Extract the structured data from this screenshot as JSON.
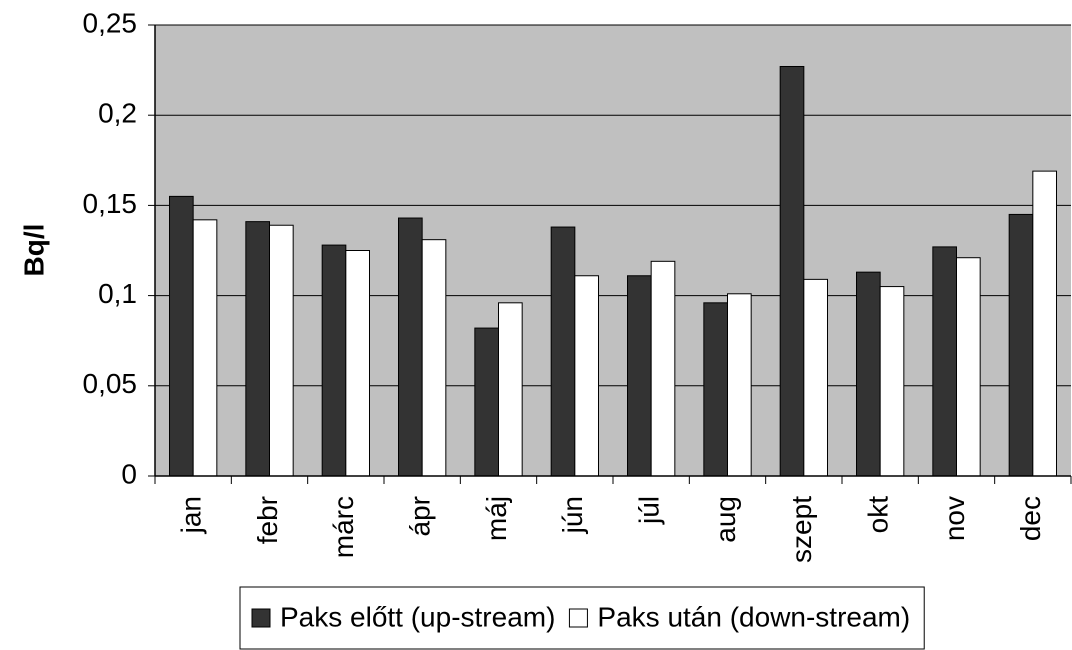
{
  "chart_data": {
    "type": "bar",
    "y_label": "Bq/l",
    "categories": [
      "jan",
      "febr",
      "márc",
      "ápr",
      "máj",
      "jún",
      "júl",
      "aug",
      "szept",
      "okt",
      "nov",
      "dec"
    ],
    "series": [
      {
        "name": "Paks előtt (up-stream)",
        "color": "#333333",
        "values": [
          0.155,
          0.141,
          0.128,
          0.143,
          0.082,
          0.138,
          0.111,
          0.096,
          0.227,
          0.113,
          0.127,
          0.145
        ]
      },
      {
        "name": "Paks után (down-stream)",
        "color": "#ffffff",
        "values": [
          0.142,
          0.139,
          0.125,
          0.131,
          0.096,
          0.111,
          0.119,
          0.101,
          0.109,
          0.105,
          0.121,
          0.169
        ]
      }
    ],
    "ylim": [
      0,
      0.25
    ],
    "yticks": [
      0,
      {
        "value": 0.05,
        "label": "0,05"
      },
      {
        "value": 0.1,
        "label": "0,1"
      },
      {
        "value": 0.15,
        "label": "0,15"
      },
      {
        "value": 0.2,
        "label": "0,2"
      },
      {
        "value": 0.25,
        "label": "0,25"
      }
    ],
    "grid": true,
    "plot_background": "#c0c0c0",
    "legend": "bottom"
  }
}
